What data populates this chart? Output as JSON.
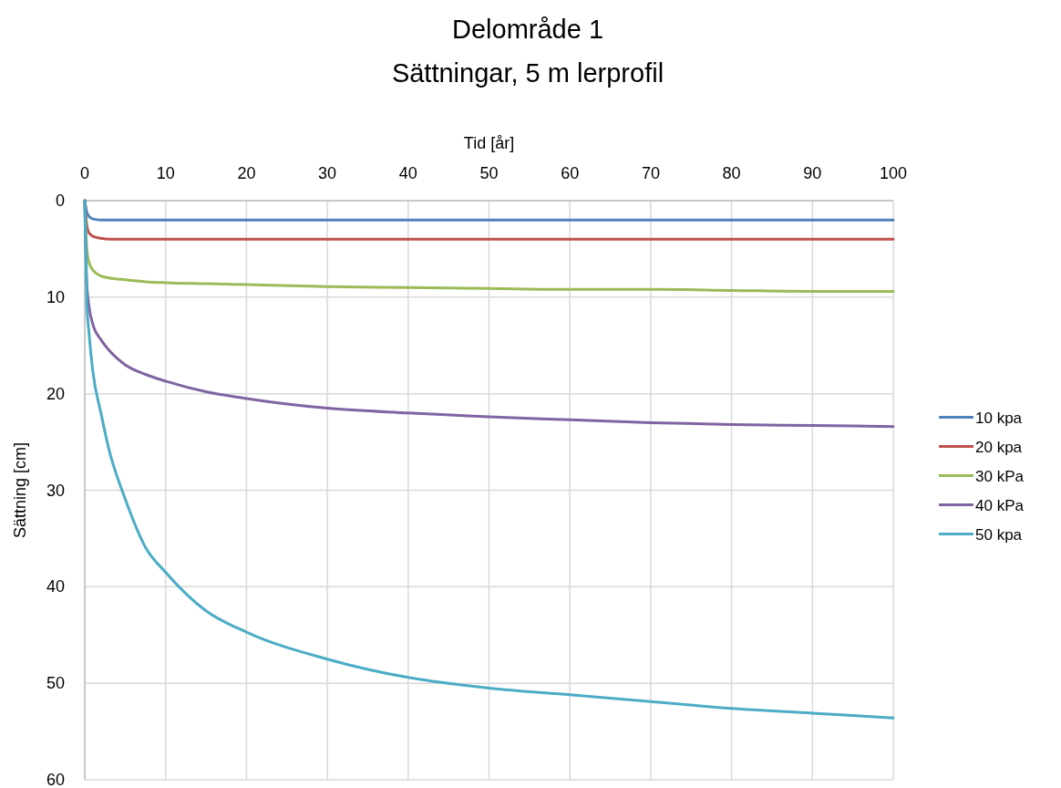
{
  "chart_data": {
    "type": "line",
    "title": "Delområde 1",
    "subtitle": "Sättningar, 5 m lerprofil",
    "xlabel": "Tid [år]",
    "ylabel": "Sättning [cm]",
    "xlim": [
      0,
      100
    ],
    "xticks": [
      0,
      10,
      20,
      30,
      40,
      50,
      60,
      70,
      80,
      90,
      100
    ],
    "ylim": [
      60,
      0
    ],
    "yticks": [
      0,
      10,
      20,
      30,
      40,
      50,
      60
    ],
    "grid": true,
    "legend": "right",
    "marker": "none",
    "line_style": "solid",
    "x": [
      0,
      0.25,
      0.5,
      1,
      2,
      3,
      5,
      7.5,
      10,
      15,
      20,
      30,
      40,
      50,
      60,
      70,
      80,
      90,
      100
    ],
    "series": [
      {
        "name": "10 kpa",
        "color": "#4f81bd",
        "values": [
          0,
          1.2,
          1.6,
          1.9,
          2.0,
          2.0,
          2.0,
          2.0,
          2.0,
          2.0,
          2.0,
          2.0,
          2.0,
          2.0,
          2.0,
          2.0,
          2.0,
          2.0,
          2.0
        ]
      },
      {
        "name": "20 kpa",
        "color": "#c0504d",
        "values": [
          0,
          2.6,
          3.3,
          3.7,
          3.9,
          4.0,
          4.0,
          4.0,
          4.0,
          4.0,
          4.0,
          4.0,
          4.0,
          4.0,
          4.0,
          4.0,
          4.0,
          4.0,
          4.0
        ]
      },
      {
        "name": "30 kPa",
        "color": "#9bbb59",
        "values": [
          0,
          5.0,
          6.3,
          7.2,
          7.8,
          8.0,
          8.2,
          8.4,
          8.5,
          8.6,
          8.7,
          8.9,
          9.0,
          9.1,
          9.2,
          9.2,
          9.3,
          9.4,
          9.4
        ]
      },
      {
        "name": "40 kPa",
        "color": "#8064a2",
        "values": [
          0,
          8.5,
          10.8,
          12.8,
          14.4,
          15.5,
          17.0,
          18.0,
          18.7,
          19.8,
          20.5,
          21.5,
          22.0,
          22.4,
          22.7,
          23.0,
          23.2,
          23.3,
          23.4
        ]
      },
      {
        "name": "50 kpa",
        "color": "#4bacc6",
        "values": [
          0,
          10.5,
          13.5,
          17.7,
          22.0,
          25.8,
          30.9,
          35.9,
          38.5,
          42.5,
          44.7,
          47.5,
          49.4,
          50.5,
          51.2,
          51.9,
          52.6,
          53.1,
          53.6
        ]
      }
    ]
  }
}
